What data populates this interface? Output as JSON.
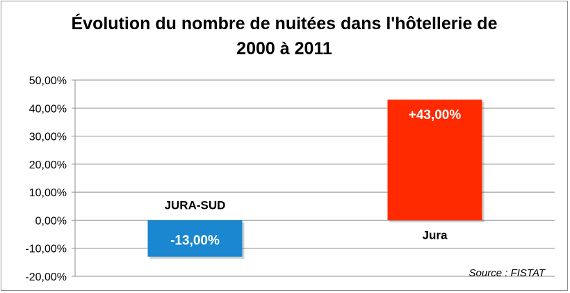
{
  "chart_data": {
    "type": "bar",
    "title_lines": [
      "Évolution du nombre de nuitées dans l'hôtellerie de",
      "2000 à 2011"
    ],
    "categories": [
      "JURA-SUD",
      "Jura"
    ],
    "values": [
      -13.0,
      43.0
    ],
    "data_labels": [
      "-13,00%",
      "+43,00%"
    ],
    "colors": [
      "#1a87d0",
      "#ff2a00"
    ],
    "ylim": [
      -20,
      50
    ],
    "yticks": [
      50,
      40,
      30,
      20,
      10,
      0,
      -10,
      -20
    ],
    "ytick_labels": [
      "50,00%",
      "40,00%",
      "30,00%",
      "20,00%",
      "10,00%",
      "0,00%",
      "-10,00%",
      "-20,00%"
    ],
    "grid": true,
    "xlabel": "",
    "ylabel": ""
  },
  "source_text": "Source : FISTAT"
}
